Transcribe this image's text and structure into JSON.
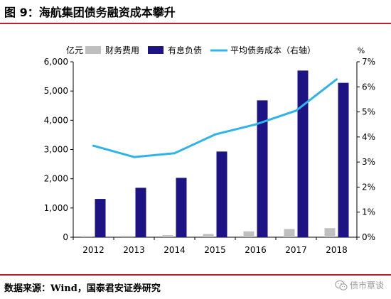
{
  "header": {
    "title": "图 9：海航集团债务融资成本攀升"
  },
  "footer": {
    "source": "数据来源：Wind，国泰君安证券研究",
    "watermark": "债市覃谈",
    "watermark_icon": "wechat-icon"
  },
  "chart_data": {
    "type": "bar",
    "title": "",
    "categories": [
      "2012",
      "2013",
      "2014",
      "2015",
      "2016",
      "2017",
      "2018"
    ],
    "y_left": {
      "label": "亿元",
      "min": 0,
      "max": 6000,
      "ticks": [
        "0",
        "1,000",
        "2,000",
        "3,000",
        "4,000",
        "5,000",
        "6,000"
      ]
    },
    "y_right": {
      "label": "%",
      "min": 0,
      "max": 7,
      "ticks": [
        "0%",
        "1%",
        "2%",
        "3%",
        "4%",
        "5%",
        "6%",
        "7%"
      ]
    },
    "legend_position": "top",
    "grid": false,
    "series": [
      {
        "name": "财务费用",
        "type": "bar",
        "axis": "left",
        "color": "#bfbfbf",
        "values": [
          40,
          50,
          70,
          110,
          200,
          280,
          310
        ]
      },
      {
        "name": "有息负债",
        "type": "bar",
        "axis": "left",
        "color": "#1d1384",
        "values": [
          1310,
          1690,
          2030,
          2930,
          4680,
          5700,
          5280
        ]
      },
      {
        "name": "平均债务成本（右轴）",
        "type": "line",
        "axis": "right",
        "color": "#2fb4ea",
        "values": [
          3.65,
          3.2,
          3.35,
          4.1,
          4.5,
          5.05,
          6.3
        ]
      }
    ]
  }
}
